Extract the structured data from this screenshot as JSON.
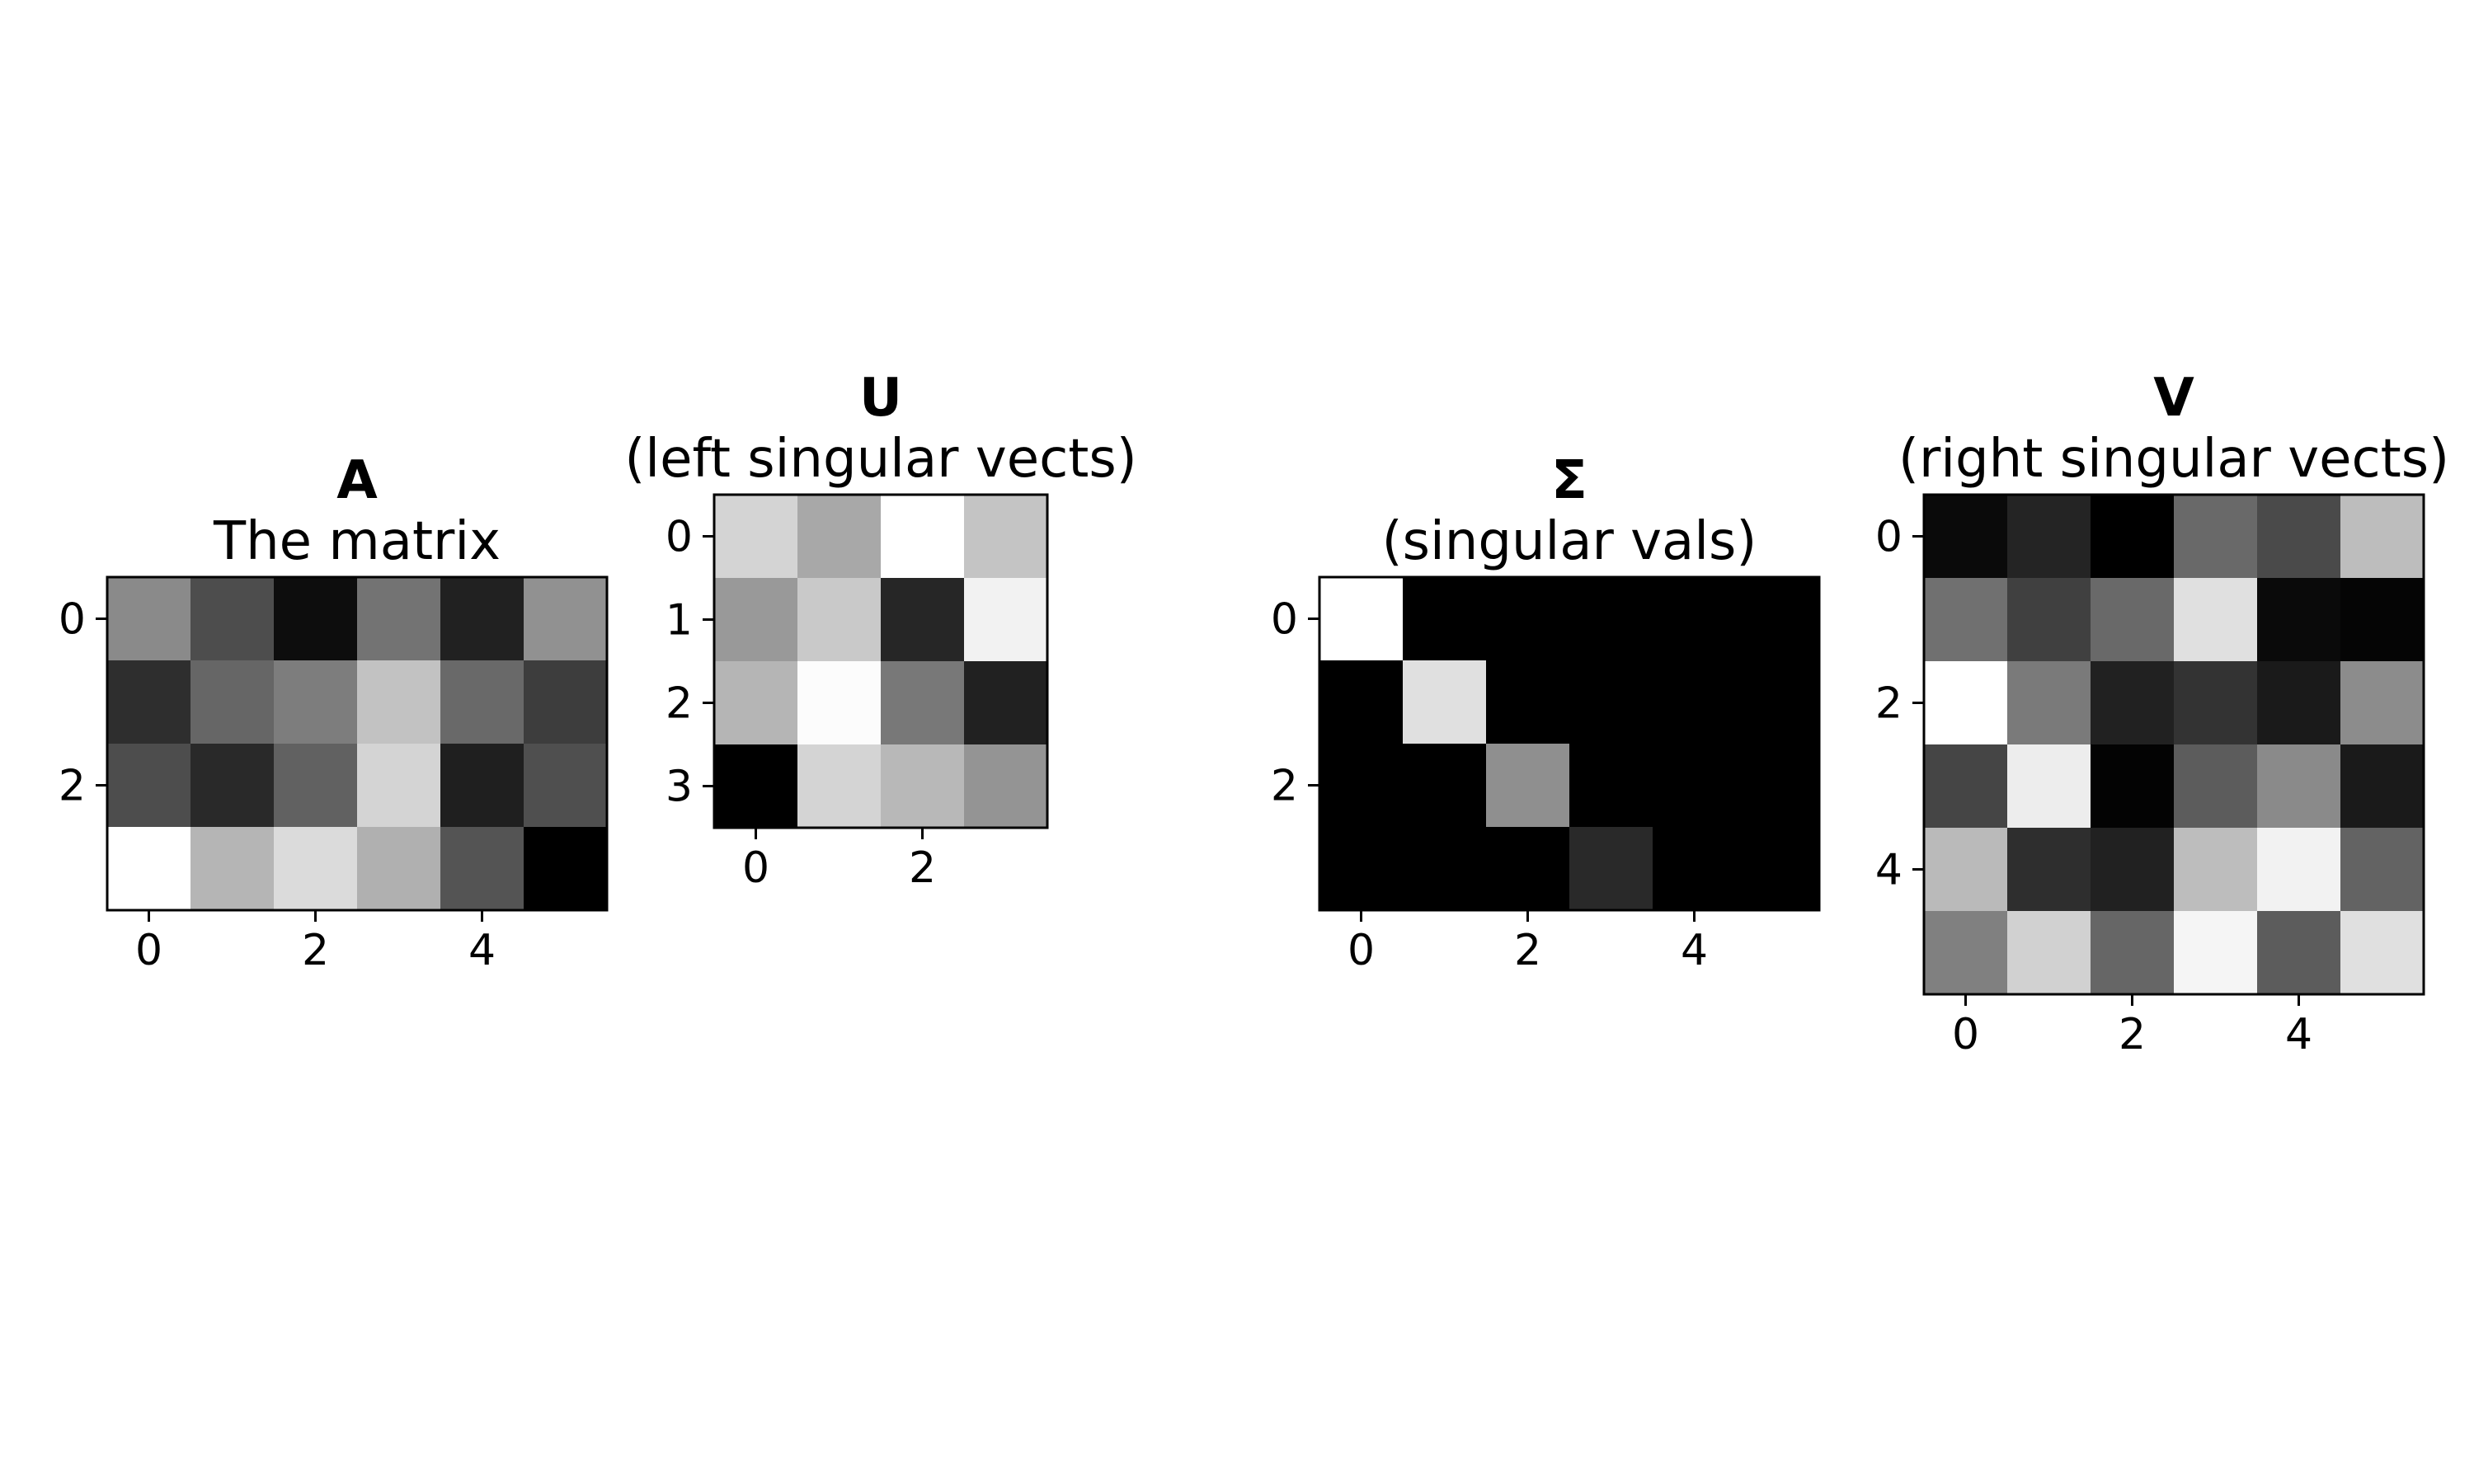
{
  "chart_data": [
    {
      "type": "heatmap",
      "title": "A",
      "subtitle": "The matrix",
      "colormap": "gray",
      "rows": 4,
      "cols": 6,
      "xticks": [
        0,
        2,
        4
      ],
      "yticks": [
        0,
        2
      ],
      "values": [
        [
          0.54,
          0.3,
          0.05,
          0.45,
          0.13,
          0.57
        ],
        [
          0.18,
          0.4,
          0.49,
          0.76,
          0.41,
          0.24
        ],
        [
          0.3,
          0.16,
          0.38,
          0.83,
          0.12,
          0.31
        ],
        [
          1.0,
          0.71,
          0.86,
          0.69,
          0.33,
          0.0
        ]
      ]
    },
    {
      "type": "heatmap",
      "title": "U",
      "subtitle": "(left singular vects)",
      "colormap": "gray",
      "rows": 4,
      "cols": 4,
      "xticks": [
        0,
        2
      ],
      "yticks": [
        0,
        1,
        2,
        3
      ],
      "values": [
        [
          0.83,
          0.66,
          1.0,
          0.77
        ],
        [
          0.6,
          0.79,
          0.15,
          0.95
        ],
        [
          0.71,
          0.99,
          0.47,
          0.13
        ],
        [
          0.0,
          0.83,
          0.72,
          0.58
        ]
      ]
    },
    {
      "type": "heatmap",
      "title": "Σ",
      "subtitle": "(singular vals)",
      "colormap": "gray",
      "rows": 4,
      "cols": 6,
      "xticks": [
        0,
        2,
        4
      ],
      "yticks": [
        0,
        2
      ],
      "values": [
        [
          1.0,
          0.0,
          0.0,
          0.0,
          0.0,
          0.0
        ],
        [
          0.0,
          0.88,
          0.0,
          0.0,
          0.0,
          0.0
        ],
        [
          0.0,
          0.0,
          0.56,
          0.0,
          0.0,
          0.0
        ],
        [
          0.0,
          0.0,
          0.0,
          0.16,
          0.0,
          0.0
        ]
      ]
    },
    {
      "type": "heatmap",
      "title": "V",
      "subtitle": "(right singular vects)",
      "colormap": "gray",
      "rows": 6,
      "cols": 6,
      "xticks": [
        0,
        2,
        4
      ],
      "yticks": [
        0,
        2,
        4
      ],
      "values": [
        [
          0.04,
          0.14,
          0.0,
          0.41,
          0.29,
          0.74
        ],
        [
          0.44,
          0.25,
          0.41,
          0.88,
          0.04,
          0.02
        ],
        [
          1.0,
          0.48,
          0.13,
          0.2,
          0.1,
          0.55
        ],
        [
          0.27,
          0.93,
          0.01,
          0.36,
          0.54,
          0.1
        ],
        [
          0.73,
          0.18,
          0.13,
          0.74,
          0.95,
          0.39
        ],
        [
          0.5,
          0.82,
          0.4,
          0.96,
          0.36,
          0.88
        ]
      ]
    }
  ]
}
